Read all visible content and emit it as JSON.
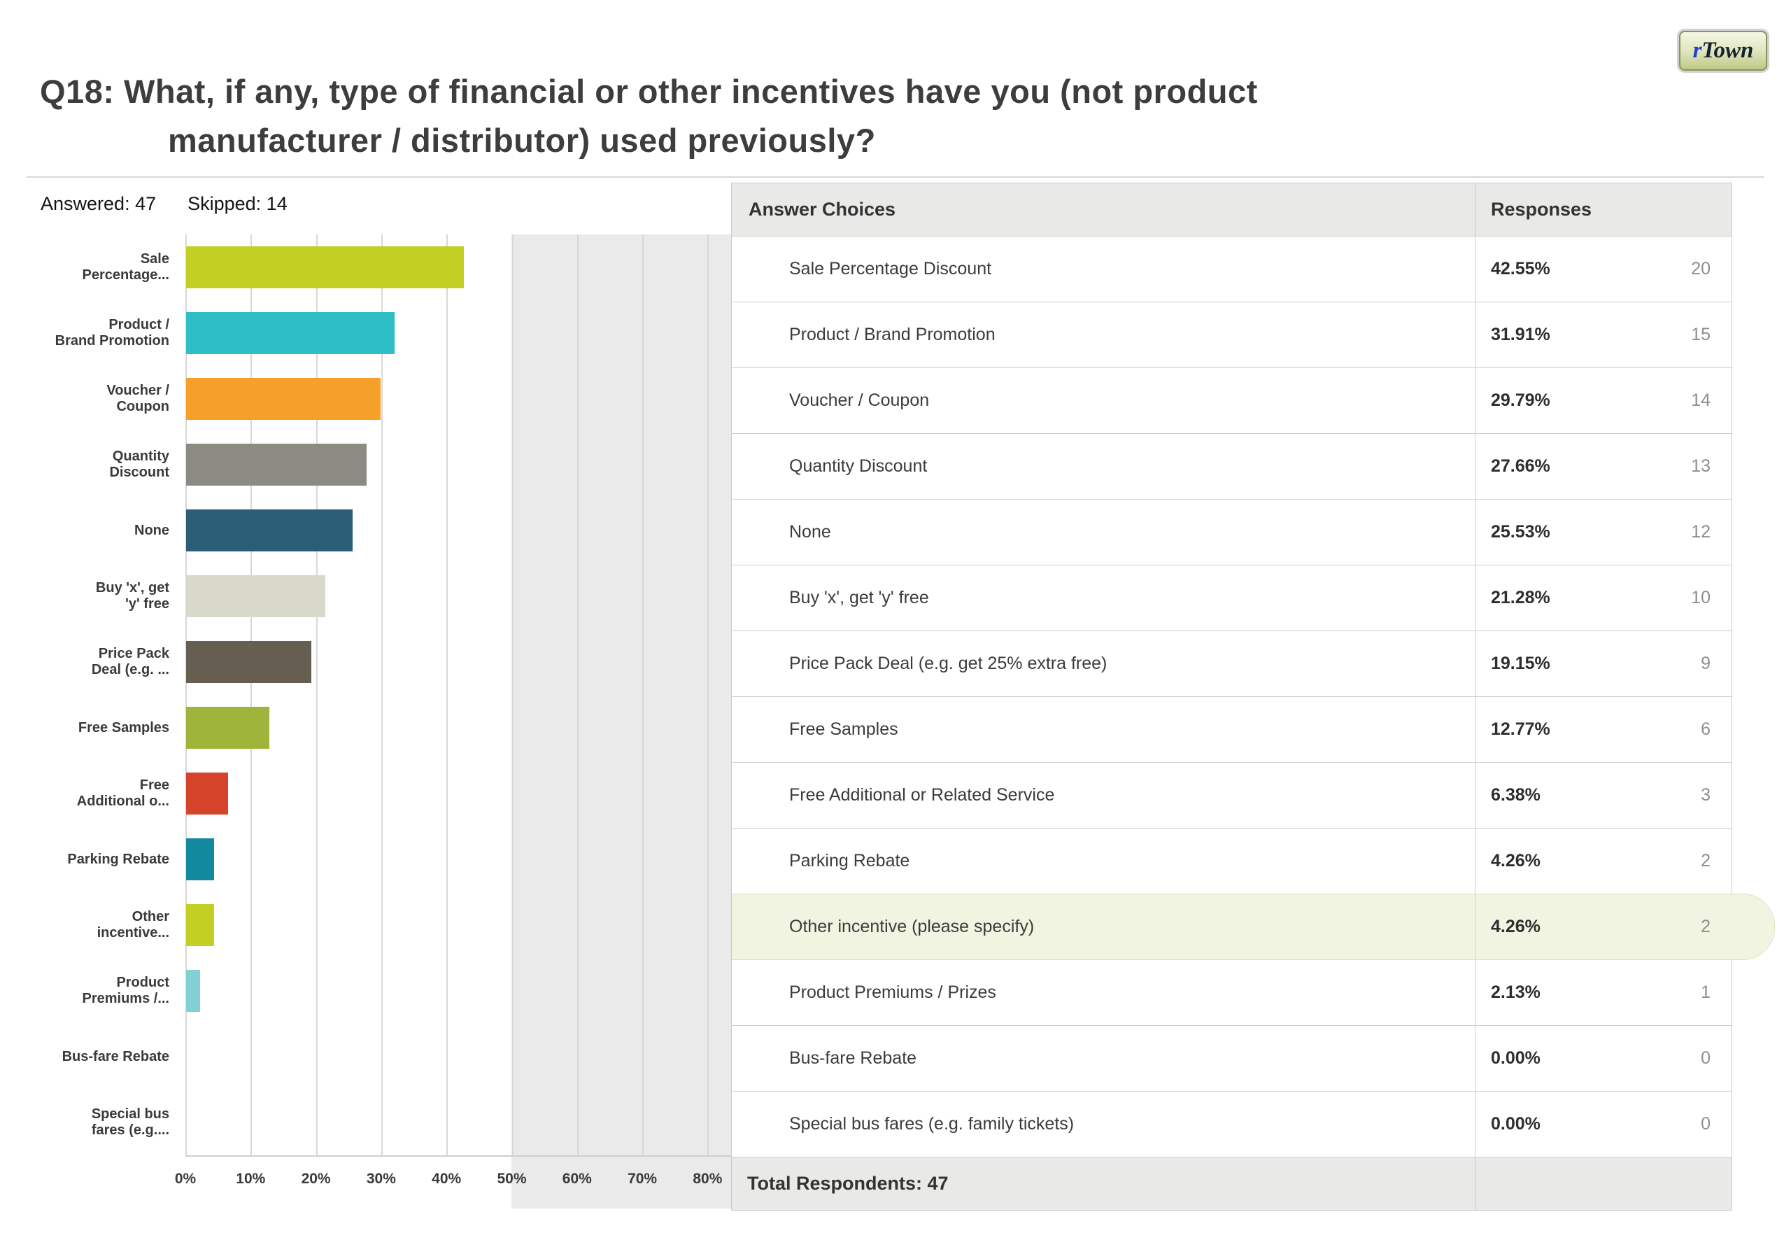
{
  "logo": {
    "prefix": "r",
    "name": "Town"
  },
  "header": {
    "title_line1": "Q18: What, if any, type of financial or other incentives have you (not product",
    "title_line2": "manufacturer / distributor) used previously?",
    "answered": "Answered: 47",
    "skipped": "Skipped: 14"
  },
  "chart_data": {
    "type": "bar",
    "orientation": "horizontal",
    "title": "",
    "xlim": [
      0,
      80
    ],
    "grid": true,
    "x_ticks": [
      "0%",
      "10%",
      "20%",
      "30%",
      "40%",
      "50%",
      "60%",
      "70%",
      "80%"
    ],
    "categories": [
      "Sale\nPercentage...",
      "Product /\nBrand Promotion",
      "Voucher /\nCoupon",
      "Quantity\nDiscount",
      "None",
      "Buy 'x', get\n'y' free",
      "Price Pack\nDeal (e.g. ...",
      "Free Samples",
      "Free\nAdditional o...",
      "Parking Rebate",
      "Other\nincentive...",
      "Product\nPremiums /...",
      "Bus-fare Rebate",
      "Special bus\nfares (e.g...."
    ],
    "values": [
      42.55,
      31.91,
      29.79,
      27.66,
      25.53,
      21.28,
      19.15,
      12.77,
      6.38,
      4.26,
      4.26,
      2.13,
      0,
      0
    ],
    "colors": [
      "#c2cf23",
      "#2ebfc6",
      "#f6a029",
      "#8b8b82",
      "#2b5e76",
      "#d9d9ca",
      "#665e50",
      "#9fb43a",
      "#d5432a",
      "#12899d",
      "#c2cf23",
      "#83d0d4",
      "#c2cf23",
      "#2ebfc6"
    ]
  },
  "table": {
    "headers": {
      "answer": "Answer Choices",
      "responses": "Responses"
    },
    "rows": [
      {
        "label": "Sale Percentage Discount",
        "percent": "42.55%",
        "count": "20",
        "highlighted": false
      },
      {
        "label": "Product / Brand Promotion",
        "percent": "31.91%",
        "count": "15",
        "highlighted": false
      },
      {
        "label": "Voucher / Coupon",
        "percent": "29.79%",
        "count": "14",
        "highlighted": false
      },
      {
        "label": "Quantity Discount",
        "percent": "27.66%",
        "count": "13",
        "highlighted": false
      },
      {
        "label": "None",
        "percent": "25.53%",
        "count": "12",
        "highlighted": false
      },
      {
        "label": "Buy 'x', get 'y' free",
        "percent": "21.28%",
        "count": "10",
        "highlighted": false
      },
      {
        "label": "Price Pack Deal (e.g. get 25% extra free)",
        "percent": "19.15%",
        "count": "9",
        "highlighted": false
      },
      {
        "label": "Free Samples",
        "percent": "12.77%",
        "count": "6",
        "highlighted": false
      },
      {
        "label": "Free Additional or Related Service",
        "percent": "6.38%",
        "count": "3",
        "highlighted": false
      },
      {
        "label": "Parking Rebate",
        "percent": "4.26%",
        "count": "2",
        "highlighted": false
      },
      {
        "label": "Other incentive (please specify)",
        "percent": "4.26%",
        "count": "2",
        "highlighted": true
      },
      {
        "label": "Product Premiums / Prizes",
        "percent": "2.13%",
        "count": "1",
        "highlighted": false
      },
      {
        "label": "Bus-fare Rebate",
        "percent": "0.00%",
        "count": "0",
        "highlighted": false
      },
      {
        "label": "Special bus fares (e.g. family tickets)",
        "percent": "0.00%",
        "count": "0",
        "highlighted": false
      }
    ],
    "footer": "Total Respondents: 47"
  }
}
